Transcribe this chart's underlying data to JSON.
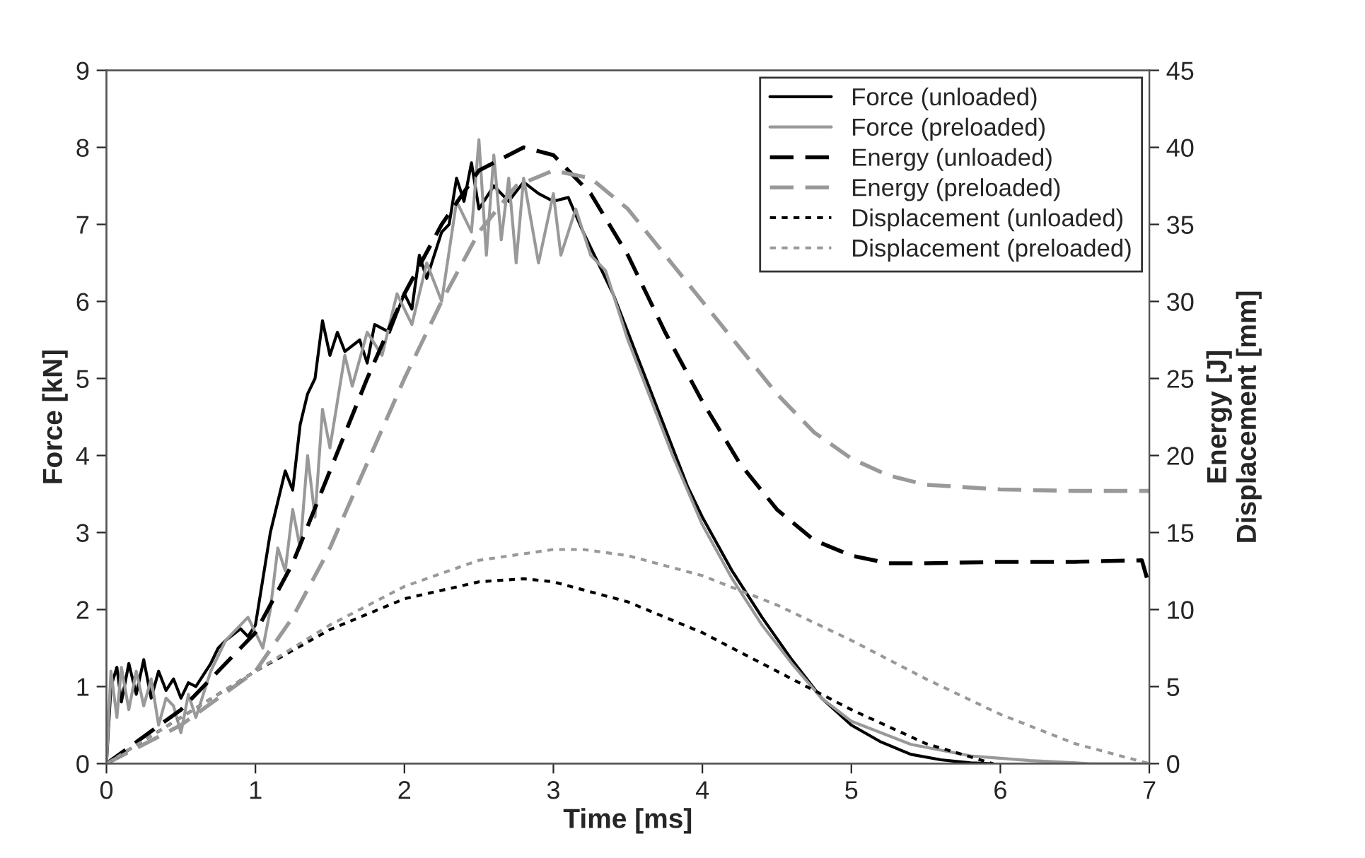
{
  "chart_data": {
    "type": "line",
    "xlabel": "Time [ms]",
    "ylabel": "Force [kN]",
    "y2label": "Energy [J]\nDisplacement [mm]",
    "xlim": [
      0,
      7
    ],
    "xticks": [
      0,
      1,
      2,
      3,
      4,
      5,
      6,
      7
    ],
    "ylim": [
      0,
      9
    ],
    "yticks": [
      0,
      1,
      2,
      3,
      4,
      5,
      6,
      7,
      8,
      9
    ],
    "y2lim": [
      0,
      45
    ],
    "y2ticks": [
      0,
      5,
      10,
      15,
      20,
      25,
      30,
      35,
      40,
      45
    ],
    "grid": false,
    "legend": "top right",
    "marker": "none",
    "series": [
      {
        "name": "Force (unloaded)",
        "color": "#000000",
        "line_style": "solid",
        "x": [
          0,
          0.03,
          0.07,
          0.1,
          0.15,
          0.2,
          0.25,
          0.3,
          0.35,
          0.4,
          0.45,
          0.5,
          0.55,
          0.6,
          0.7,
          0.75,
          0.8,
          0.9,
          0.95,
          1.0,
          1.05,
          1.1,
          1.15,
          1.2,
          1.25,
          1.3,
          1.35,
          1.4,
          1.45,
          1.5,
          1.55,
          1.6,
          1.7,
          1.75,
          1.8,
          1.9,
          2.0,
          2.05,
          2.1,
          2.15,
          2.25,
          2.3,
          2.35,
          2.4,
          2.45,
          2.5,
          2.6,
          2.7,
          2.8,
          2.9,
          3.0,
          3.1,
          3.2,
          3.3,
          3.4,
          3.5,
          3.6,
          3.7,
          3.8,
          3.9,
          4.0,
          4.2,
          4.4,
          4.6,
          4.8,
          5.0,
          5.2,
          5.4,
          5.6,
          5.8,
          5.95
        ],
        "values": [
          0,
          1.0,
          1.25,
          0.8,
          1.3,
          0.9,
          1.35,
          0.85,
          1.2,
          0.95,
          1.1,
          0.85,
          1.05,
          1.0,
          1.3,
          1.5,
          1.6,
          1.75,
          1.65,
          1.8,
          2.4,
          3.0,
          3.4,
          3.8,
          3.55,
          4.4,
          4.8,
          5.0,
          5.75,
          5.3,
          5.6,
          5.35,
          5.5,
          5.2,
          5.7,
          5.6,
          6.1,
          5.9,
          6.6,
          6.3,
          6.9,
          7.0,
          7.6,
          7.3,
          7.8,
          7.2,
          7.5,
          7.3,
          7.55,
          7.4,
          7.3,
          7.35,
          6.9,
          6.5,
          6.1,
          5.6,
          5.1,
          4.6,
          4.1,
          3.6,
          3.2,
          2.5,
          1.9,
          1.35,
          0.85,
          0.5,
          0.28,
          0.12,
          0.05,
          0.01,
          0
        ]
      },
      {
        "name": "Force (preloaded)",
        "color": "#999999",
        "line_style": "solid",
        "x": [
          0,
          0.03,
          0.07,
          0.1,
          0.15,
          0.2,
          0.25,
          0.3,
          0.35,
          0.4,
          0.45,
          0.5,
          0.55,
          0.6,
          0.7,
          0.8,
          0.9,
          0.95,
          1.0,
          1.05,
          1.1,
          1.15,
          1.2,
          1.25,
          1.3,
          1.35,
          1.4,
          1.45,
          1.5,
          1.6,
          1.65,
          1.75,
          1.85,
          1.95,
          2.05,
          2.15,
          2.25,
          2.35,
          2.45,
          2.5,
          2.55,
          2.6,
          2.65,
          2.7,
          2.75,
          2.8,
          2.9,
          3.0,
          3.05,
          3.15,
          3.25,
          3.35,
          3.5,
          3.6,
          3.7,
          3.8,
          4.0,
          4.2,
          4.4,
          4.6,
          4.8,
          5.0,
          5.4,
          5.8,
          6.2,
          6.6,
          7.0
        ],
        "values": [
          0,
          1.2,
          0.6,
          1.25,
          0.7,
          1.2,
          0.75,
          1.1,
          0.5,
          0.85,
          0.75,
          0.4,
          0.9,
          0.6,
          1.2,
          1.6,
          1.8,
          1.9,
          1.7,
          1.5,
          2.0,
          2.8,
          2.5,
          3.3,
          2.8,
          4.0,
          3.2,
          4.6,
          4.1,
          5.3,
          4.9,
          5.6,
          5.3,
          6.1,
          5.7,
          6.5,
          6.0,
          7.3,
          6.9,
          8.1,
          6.6,
          7.9,
          6.8,
          7.6,
          6.5,
          7.6,
          6.5,
          7.4,
          6.6,
          7.2,
          6.6,
          6.4,
          5.5,
          5.0,
          4.5,
          4.0,
          3.1,
          2.4,
          1.8,
          1.3,
          0.85,
          0.55,
          0.25,
          0.1,
          0.04,
          0,
          0
        ]
      },
      {
        "name": "Energy (unloaded)",
        "color": "#000000",
        "line_style": "dashed",
        "axis": "y2",
        "x": [
          0,
          0.5,
          1.0,
          1.25,
          1.5,
          1.75,
          2.0,
          2.25,
          2.5,
          2.8,
          3.0,
          3.25,
          3.5,
          3.75,
          4.0,
          4.25,
          4.5,
          4.75,
          5.0,
          5.25,
          5.5,
          6.0,
          6.5,
          6.95,
          7.0
        ],
        "values": [
          0,
          3.5,
          8.5,
          13,
          19,
          25,
          30.5,
          35,
          38.5,
          40,
          39.5,
          37,
          33,
          28,
          23.5,
          19.5,
          16.5,
          14.5,
          13.5,
          13,
          13,
          13.1,
          13.1,
          13.2,
          11.5
        ]
      },
      {
        "name": "Energy (preloaded)",
        "color": "#999999",
        "line_style": "dashed",
        "axis": "y2",
        "x": [
          0,
          0.5,
          1.0,
          1.25,
          1.5,
          1.75,
          2.0,
          2.25,
          2.5,
          2.75,
          3.0,
          3.25,
          3.5,
          3.75,
          4.0,
          4.25,
          4.5,
          4.75,
          5.0,
          5.25,
          5.5,
          6.0,
          6.5,
          7.0
        ],
        "values": [
          0,
          2.5,
          6,
          9.5,
          14,
          19.5,
          25,
          30,
          34.5,
          37.5,
          38.5,
          38,
          36,
          33,
          30,
          27,
          24,
          21.5,
          19.8,
          18.7,
          18.1,
          17.8,
          17.7,
          17.7
        ]
      },
      {
        "name": "Displacement (unloaded)",
        "color": "#000000",
        "line_style": "dotted",
        "axis": "y2",
        "x": [
          0,
          0.5,
          1.0,
          1.5,
          2.0,
          2.5,
          2.8,
          3.0,
          3.5,
          4.0,
          4.5,
          5.0,
          5.5,
          5.95
        ],
        "values": [
          0,
          3,
          6,
          8.7,
          10.7,
          11.8,
          12,
          11.8,
          10.5,
          8.5,
          6,
          3.5,
          1.3,
          0
        ]
      },
      {
        "name": "Displacement (preloaded)",
        "color": "#999999",
        "line_style": "dotted",
        "axis": "y2",
        "x": [
          0,
          0.5,
          1.0,
          1.5,
          2.0,
          2.5,
          3.0,
          3.2,
          3.5,
          4.0,
          4.5,
          5.0,
          5.5,
          6.0,
          6.5,
          7.0
        ],
        "values": [
          0,
          3,
          6,
          9,
          11.5,
          13.2,
          13.9,
          13.9,
          13.5,
          12.2,
          10.3,
          8,
          5.5,
          3.2,
          1.3,
          0
        ]
      }
    ]
  }
}
